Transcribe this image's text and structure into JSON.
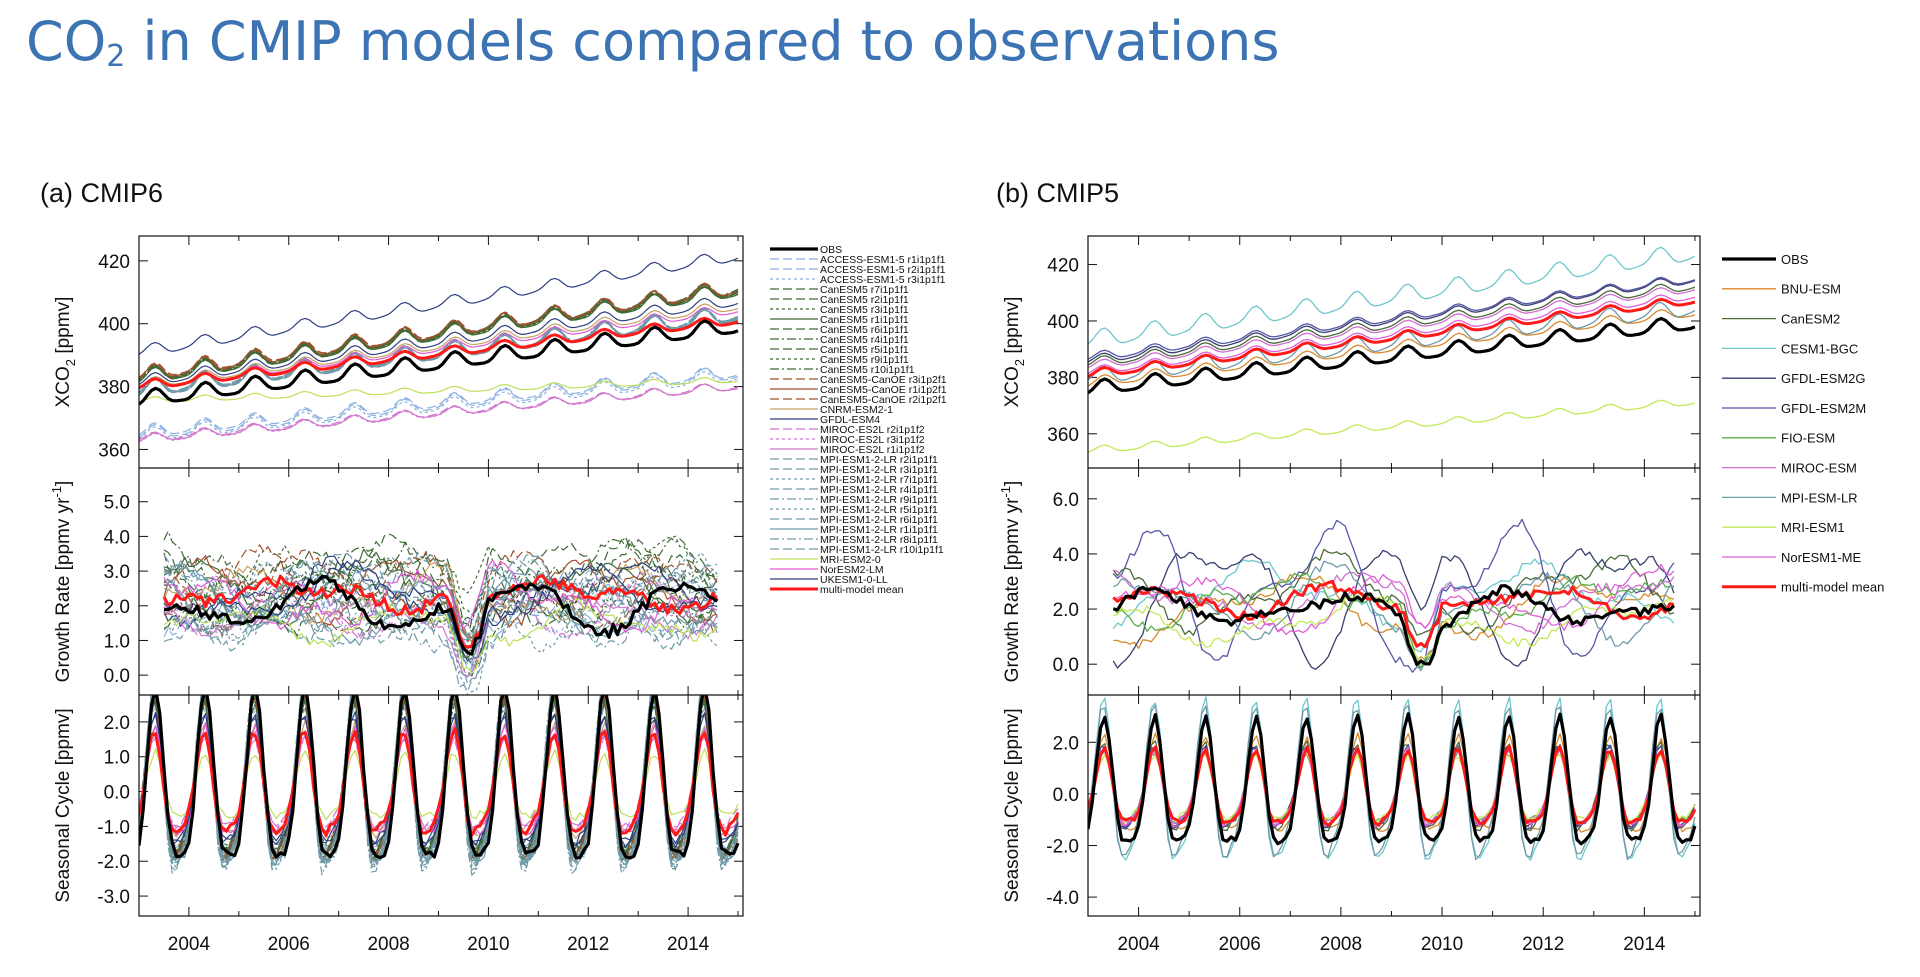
{
  "slide": {
    "title_prefix": "CO",
    "title_sub": "2",
    "title_suffix": " in CMIP models compared to observations"
  },
  "chart_data": [
    {
      "type": "line",
      "title": "(a) CMIP6",
      "x_ticks": [
        "2004",
        "2006",
        "2008",
        "2010",
        "2012",
        "2014"
      ],
      "xlim": [
        2003.0,
        2015.1
      ],
      "subpanels": [
        {
          "key": "xco2",
          "ylabel": "XCO2 [ppmv]",
          "ylabel_main": "XCO",
          "ylabel_sub": "2",
          "ylabel_rest": " [ppmv]",
          "ylim": [
            356,
            426
          ],
          "yticks": [
            "420",
            "400",
            "380",
            "360"
          ],
          "ytick_values": [
            420,
            400,
            380,
            360
          ]
        },
        {
          "key": "growth",
          "ylabel": "Growth Rate [ppmv yr-1]",
          "ylabel_main": "Growth Rate [ppmv yr",
          "ylabel_sup": "-1",
          "ylabel_rest": "]",
          "ylim": [
            -0.4,
            5.8
          ],
          "yticks": [
            "5.0",
            "4.0",
            "3.0",
            "2.0",
            "1.0",
            "0.0"
          ],
          "ytick_values": [
            5,
            4,
            3,
            2,
            1,
            0
          ]
        },
        {
          "key": "seasonal",
          "ylabel": "Seasonal Cycle [ppmv]",
          "ylim": [
            -3.4,
            2.6
          ],
          "yticks": [
            "2.0",
            "1.0",
            "0.0",
            "-1.0",
            "-2.0",
            "-3.0"
          ],
          "ytick_values": [
            2,
            1,
            0,
            -1,
            -2,
            -3
          ]
        }
      ],
      "series": [
        {
          "name": "OBS",
          "color": "#000000",
          "width": 3.2,
          "dash": "",
          "start": 375.8,
          "trend": 1.95,
          "amp": 2.4,
          "gr_amp": 0.5,
          "gr_mean": 2.0
        },
        {
          "name": "ACCESS-ESM1-5 r1i1p1f1",
          "color": "#8ab0e0",
          "width": 1.2,
          "dash": "9 4",
          "start": 365.5,
          "trend": 1.6,
          "amp": 2.0,
          "gr_amp": 0.6,
          "gr_mean": 2.2
        },
        {
          "name": "ACCESS-ESM1-5 r2i1p1f1",
          "color": "#8ab0e0",
          "width": 1.2,
          "dash": "9 4",
          "start": 364.8,
          "trend": 1.62,
          "amp": 2.1,
          "gr_amp": 0.6,
          "gr_mean": 2.1
        },
        {
          "name": "ACCESS-ESM1-5 r3i1p1f1",
          "color": "#8ab0e0",
          "width": 1.2,
          "dash": "3 3",
          "start": 364.2,
          "trend": 1.6,
          "amp": 2.0,
          "gr_amp": 0.7,
          "gr_mean": 2.2
        },
        {
          "name": "CanESM5 r7i1p1f1",
          "color": "#3f6a36",
          "width": 1.2,
          "dash": "9 4",
          "start": 383.4,
          "trend": 2.35,
          "amp": 2.2,
          "gr_amp": 0.8,
          "gr_mean": 2.6
        },
        {
          "name": "CanESM5 r2i1p1f1",
          "color": "#3f6a36",
          "width": 1.2,
          "dash": "9 4",
          "start": 382.8,
          "trend": 2.33,
          "amp": 2.2,
          "gr_amp": 0.8,
          "gr_mean": 2.5
        },
        {
          "name": "CanESM5 r3i1p1f1",
          "color": "#3f6a36",
          "width": 1.2,
          "dash": "3 3",
          "start": 383.0,
          "trend": 2.3,
          "amp": 2.1,
          "gr_amp": 0.8,
          "gr_mean": 2.5
        },
        {
          "name": "CanESM5 r1i1p1f1",
          "color": "#3f6a36",
          "width": 1.2,
          "dash": "",
          "start": 382.6,
          "trend": 2.32,
          "amp": 2.2,
          "gr_amp": 0.7,
          "gr_mean": 2.5
        },
        {
          "name": "CanESM5 r6i1p1f1",
          "color": "#3f6a36",
          "width": 1.2,
          "dash": "9 4",
          "start": 383.2,
          "trend": 2.34,
          "amp": 2.2,
          "gr_amp": 0.9,
          "gr_mean": 2.6
        },
        {
          "name": "CanESM5 r4i1p1f1",
          "color": "#3f6a36",
          "width": 1.2,
          "dash": "9 3 2 3",
          "start": 382.9,
          "trend": 2.36,
          "amp": 2.2,
          "gr_amp": 0.8,
          "gr_mean": 2.6
        },
        {
          "name": "CanESM5 r5i1p1f1",
          "color": "#3f6a36",
          "width": 1.2,
          "dash": "9 4",
          "start": 383.1,
          "trend": 2.31,
          "amp": 2.1,
          "gr_amp": 0.8,
          "gr_mean": 2.5
        },
        {
          "name": "CanESM5 r9i1p1f1",
          "color": "#3f6a36",
          "width": 1.2,
          "dash": "3 3",
          "start": 382.7,
          "trend": 2.35,
          "amp": 2.2,
          "gr_amp": 0.9,
          "gr_mean": 2.6
        },
        {
          "name": "CanESM5 r10i1p1f1",
          "color": "#3f6a36",
          "width": 1.2,
          "dash": "9 3 2 3",
          "start": 383.3,
          "trend": 2.37,
          "amp": 2.2,
          "gr_amp": 1.0,
          "gr_mean": 2.7
        },
        {
          "name": "CanESM5-CanOE r3i1p2f1",
          "color": "#a0522d",
          "width": 1.2,
          "dash": "9 4",
          "start": 384.0,
          "trend": 2.3,
          "amp": 2.3,
          "gr_amp": 0.8,
          "gr_mean": 2.5
        },
        {
          "name": "CanESM5-CanOE r1i1p2f1",
          "color": "#a0522d",
          "width": 1.2,
          "dash": "",
          "start": 383.6,
          "trend": 2.32,
          "amp": 2.3,
          "gr_amp": 0.7,
          "gr_mean": 2.5
        },
        {
          "name": "CanESM5-CanOE r2i1p2f1",
          "color": "#a0522d",
          "width": 1.2,
          "dash": "9 4",
          "start": 383.8,
          "trend": 2.31,
          "amp": 2.3,
          "gr_amp": 0.8,
          "gr_mean": 2.5
        },
        {
          "name": "CNRM-ESM2-1",
          "color": "#c8a064",
          "width": 1.2,
          "dash": "",
          "start": 380.5,
          "trend": 2.1,
          "amp": 1.6,
          "gr_amp": 0.6,
          "gr_mean": 2.3
        },
        {
          "name": "GFDL-ESM4",
          "color": "#2e3f80",
          "width": 1.2,
          "dash": "",
          "start": 391.0,
          "trend": 2.55,
          "amp": 1.8,
          "gr_amp": 0.6,
          "gr_mean": 2.4
        },
        {
          "name": "MIROC-ES2L r2i1p1f2",
          "color": "#d277d0",
          "width": 1.2,
          "dash": "9 4",
          "start": 363.5,
          "trend": 1.4,
          "amp": 1.3,
          "gr_amp": 0.6,
          "gr_mean": 1.9
        },
        {
          "name": "MIROC-ES2L r3i1p1f2",
          "color": "#d277d0",
          "width": 1.2,
          "dash": "3 3",
          "start": 363.0,
          "trend": 1.42,
          "amp": 1.3,
          "gr_amp": 0.6,
          "gr_mean": 1.9
        },
        {
          "name": "MIROC-ES2L r1i1p1f2",
          "color": "#d277d0",
          "width": 1.2,
          "dash": "",
          "start": 363.2,
          "trend": 1.41,
          "amp": 1.3,
          "gr_amp": 0.5,
          "gr_mean": 1.9
        },
        {
          "name": "MPI-ESM1-2-LR r2i1p1f1",
          "color": "#6f9aa8",
          "width": 1.2,
          "dash": "9 4",
          "start": 379.0,
          "trend": 2.0,
          "amp": 2.5,
          "gr_amp": 0.8,
          "gr_mean": 2.0
        },
        {
          "name": "MPI-ESM1-2-LR r3i1p1f1",
          "color": "#6f9aa8",
          "width": 1.2,
          "dash": "9 4",
          "start": 378.6,
          "trend": 2.02,
          "amp": 2.5,
          "gr_amp": 0.8,
          "gr_mean": 2.0
        },
        {
          "name": "MPI-ESM1-2-LR r7i1p1f1",
          "color": "#6f9aa8",
          "width": 1.2,
          "dash": "3 3",
          "start": 379.2,
          "trend": 2.01,
          "amp": 2.6,
          "gr_amp": 0.9,
          "gr_mean": 2.1
        },
        {
          "name": "MPI-ESM1-2-LR r4i1p1f1",
          "color": "#6f9aa8",
          "width": 1.2,
          "dash": "9 4",
          "start": 378.8,
          "trend": 2.03,
          "amp": 2.5,
          "gr_amp": 0.8,
          "gr_mean": 2.0
        },
        {
          "name": "MPI-ESM1-2-LR r9i1p1f1",
          "color": "#6f9aa8",
          "width": 1.2,
          "dash": "9 3 2 3",
          "start": 379.1,
          "trend": 2.0,
          "amp": 2.5,
          "gr_amp": 0.9,
          "gr_mean": 2.1
        },
        {
          "name": "MPI-ESM1-2-LR r5i1p1f1",
          "color": "#6f9aa8",
          "width": 1.2,
          "dash": "3 3",
          "start": 378.9,
          "trend": 2.02,
          "amp": 2.6,
          "gr_amp": 0.8,
          "gr_mean": 2.0
        },
        {
          "name": "MPI-ESM1-2-LR r6i1p1f1",
          "color": "#6f9aa8",
          "width": 1.2,
          "dash": "9 4",
          "start": 379.3,
          "trend": 2.01,
          "amp": 2.5,
          "gr_amp": 0.9,
          "gr_mean": 2.1
        },
        {
          "name": "MPI-ESM1-2-LR r1i1p1f1",
          "color": "#6f9aa8",
          "width": 1.2,
          "dash": "",
          "start": 378.7,
          "trend": 2.0,
          "amp": 2.5,
          "gr_amp": 0.8,
          "gr_mean": 2.0
        },
        {
          "name": "MPI-ESM1-2-LR r8i1p1f1",
          "color": "#6f9aa8",
          "width": 1.2,
          "dash": "9 3 2 3",
          "start": 379.0,
          "trend": 2.03,
          "amp": 2.6,
          "gr_amp": 0.9,
          "gr_mean": 2.1
        },
        {
          "name": "MPI-ESM1-2-LR r10i1p1f1",
          "color": "#6f9aa8",
          "width": 1.2,
          "dash": "9 4",
          "start": 378.5,
          "trend": 2.01,
          "amp": 2.5,
          "gr_amp": 0.8,
          "gr_mean": 2.0
        },
        {
          "name": "MRI-ESM2-0",
          "color": "#bde05a",
          "width": 1.2,
          "dash": "",
          "start": 375.5,
          "trend": 0.55,
          "amp": 0.9,
          "gr_amp": 0.4,
          "gr_mean": 1.5
        },
        {
          "name": "NorESM2-LM",
          "color": "#e05ad6",
          "width": 1.2,
          "dash": "",
          "start": 380.0,
          "trend": 2.05,
          "amp": 1.5,
          "gr_amp": 0.7,
          "gr_mean": 2.3
        },
        {
          "name": "UKESM1-0-LL",
          "color": "#2e3f80",
          "width": 1.2,
          "dash": "",
          "start": 381.5,
          "trend": 2.15,
          "amp": 1.8,
          "gr_amp": 0.6,
          "gr_mean": 2.3
        },
        {
          "name": "multi-model mean",
          "color": "#ff1a1a",
          "width": 3.0,
          "dash": "",
          "start": 380.2,
          "trend": 1.75,
          "amp": 1.4,
          "gr_amp": 0.3,
          "gr_mean": 2.3
        }
      ]
    },
    {
      "type": "line",
      "title": "(b) CMIP5",
      "x_ticks": [
        "2004",
        "2006",
        "2008",
        "2010",
        "2012",
        "2014"
      ],
      "xlim": [
        2003.0,
        2015.1
      ],
      "subpanels": [
        {
          "key": "xco2",
          "ylabel": "XCO2 [ppmv]",
          "ylabel_main": "XCO",
          "ylabel_sub": "2",
          "ylabel_rest": " [ppmv]",
          "ylim": [
            350,
            428
          ],
          "yticks": [
            "420",
            "400",
            "380",
            "360"
          ],
          "ytick_values": [
            420,
            400,
            380,
            360
          ]
        },
        {
          "key": "growth",
          "ylabel": "Growth Rate [ppmv yr-1]",
          "ylabel_main": "Growth Rate [ppmv yr",
          "ylabel_sup": "-1",
          "ylabel_rest": "]",
          "ylim": [
            -0.9,
            6.9
          ],
          "yticks": [
            "6.0",
            "4.0",
            "2.0",
            "0.0"
          ],
          "ytick_values": [
            6,
            4,
            2,
            0
          ]
        },
        {
          "key": "seasonal",
          "ylabel": "Seasonal Cycle [ppmv]",
          "ylim": [
            -4.5,
            3.6
          ],
          "yticks": [
            "2.0",
            "0.0",
            "-2.0",
            "-4.0"
          ],
          "ytick_values": [
            2,
            0,
            -2,
            -4
          ]
        }
      ],
      "series": [
        {
          "name": "OBS",
          "color": "#000000",
          "width": 3.2,
          "dash": "",
          "start": 375.8,
          "trend": 1.95,
          "amp": 2.4,
          "gr_amp": 0.5,
          "gr_mean": 2.0
        },
        {
          "name": "BNU-ESM",
          "color": "#d98a2b",
          "width": 1.3,
          "dash": "",
          "start": 378.0,
          "trend": 2.1,
          "amp": 1.8,
          "gr_amp": 0.9,
          "gr_mean": 2.0
        },
        {
          "name": "CanESM2",
          "color": "#4a6b3a",
          "width": 1.3,
          "dash": "",
          "start": 385.0,
          "trend": 2.3,
          "amp": 1.6,
          "gr_amp": 1.0,
          "gr_mean": 2.6
        },
        {
          "name": "CESM1-BGC",
          "color": "#6fc7cc",
          "width": 1.3,
          "dash": "",
          "start": 393.0,
          "trend": 2.6,
          "amp": 3.0,
          "gr_amp": 0.8,
          "gr_mean": 2.6
        },
        {
          "name": "GFDL-ESM2G",
          "color": "#393f6e",
          "width": 1.3,
          "dash": "",
          "start": 386.0,
          "trend": 2.4,
          "amp": 1.5,
          "gr_amp": 1.8,
          "gr_mean": 2.6
        },
        {
          "name": "GFDL-ESM2M",
          "color": "#5558a8",
          "width": 1.3,
          "dash": "",
          "start": 387.0,
          "trend": 2.35,
          "amp": 1.5,
          "gr_amp": 1.9,
          "gr_mean": 2.7
        },
        {
          "name": "FIO-ESM",
          "color": "#5ab04a",
          "width": 1.3,
          "dash": "",
          "start": 381.0,
          "trend": 2.2,
          "amp": 1.3,
          "gr_amp": 0.7,
          "gr_mean": 2.2
        },
        {
          "name": "MIROC-ESM",
          "color": "#cf6fd0",
          "width": 1.3,
          "dash": "",
          "start": 384.0,
          "trend": 2.3,
          "amp": 1.4,
          "gr_amp": 0.8,
          "gr_mean": 2.4
        },
        {
          "name": "MPI-ESM-LR",
          "color": "#6f9aa8",
          "width": 1.3,
          "dash": "",
          "start": 380.0,
          "trend": 2.05,
          "amp": 2.8,
          "gr_amp": 1.0,
          "gr_mean": 2.2
        },
        {
          "name": "MRI-ESM1",
          "color": "#c2ea55",
          "width": 1.3,
          "dash": "",
          "start": 354.0,
          "trend": 1.45,
          "amp": 1.2,
          "gr_amp": 0.6,
          "gr_mean": 1.6
        },
        {
          "name": "NorESM1-ME",
          "color": "#e25fd8",
          "width": 1.3,
          "dash": "",
          "start": 382.0,
          "trend": 2.25,
          "amp": 1.4,
          "gr_amp": 0.8,
          "gr_mean": 2.3
        },
        {
          "name": "multi-model mean",
          "color": "#ff1a1a",
          "width": 3.0,
          "dash": "",
          "start": 381.0,
          "trend": 2.2,
          "amp": 1.4,
          "gr_amp": 0.4,
          "gr_mean": 2.3
        }
      ]
    }
  ]
}
